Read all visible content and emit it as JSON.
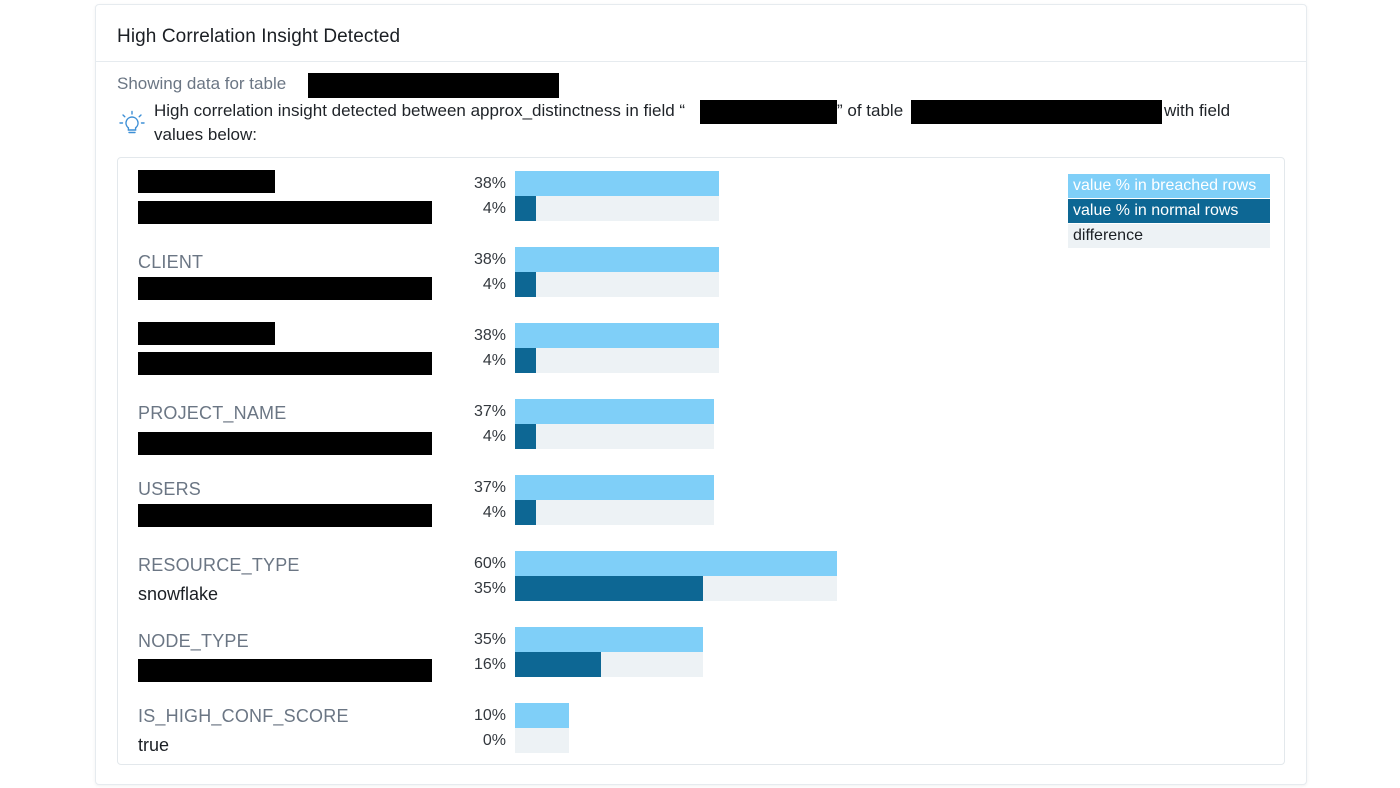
{
  "panel": {
    "title": "High Correlation Insight Detected",
    "subtitle": "Showing data for table",
    "insight_pre": "High correlation insight detected between approx_distinctness in field “",
    "insight_mid": "” of table",
    "insight_post": "with field",
    "insight_line2": "values below:"
  },
  "legend": {
    "breached": "value % in breached rows",
    "normal": "value % in normal rows",
    "difference": "difference"
  },
  "colors": {
    "breached": "#7fcff8",
    "normal": "#0d6794",
    "difference": "#edf2f5"
  },
  "chart_data": {
    "type": "bar",
    "series": [
      {
        "name": "value % in breached rows",
        "values": [
          38,
          38,
          38,
          37,
          37,
          60,
          35,
          10
        ]
      },
      {
        "name": "value % in normal rows",
        "values": [
          4,
          4,
          4,
          4,
          4,
          35,
          16,
          0
        ]
      }
    ],
    "rows": [
      {
        "field": "",
        "value": "",
        "breached": 38,
        "normal": 4,
        "breached_label": "38%",
        "normal_label": "4%"
      },
      {
        "field": "CLIENT",
        "value": "",
        "breached": 38,
        "normal": 4,
        "breached_label": "38%",
        "normal_label": "4%"
      },
      {
        "field": "",
        "value": "",
        "breached": 38,
        "normal": 4,
        "breached_label": "38%",
        "normal_label": "4%"
      },
      {
        "field": "PROJECT_NAME",
        "value": "",
        "breached": 37,
        "normal": 4,
        "breached_label": "37%",
        "normal_label": "4%"
      },
      {
        "field": "USERS",
        "value": "",
        "breached": 37,
        "normal": 4,
        "breached_label": "37%",
        "normal_label": "4%"
      },
      {
        "field": "RESOURCE_TYPE",
        "value": "snowflake",
        "breached": 60,
        "normal": 35,
        "breached_label": "60%",
        "normal_label": "35%"
      },
      {
        "field": "NODE_TYPE",
        "value": "",
        "breached": 35,
        "normal": 16,
        "breached_label": "35%",
        "normal_label": "16%"
      },
      {
        "field": "IS_HIGH_CONF_SCORE",
        "value": "true",
        "breached": 10,
        "normal": 0,
        "breached_label": "10%",
        "normal_label": "0%"
      }
    ]
  }
}
